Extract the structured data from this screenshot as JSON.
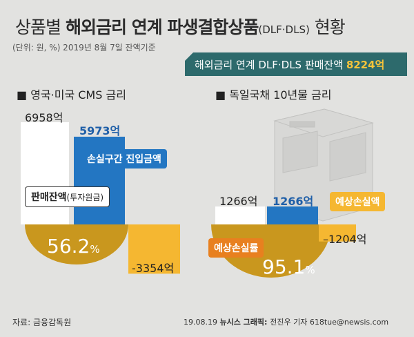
{
  "title": {
    "pre": "상품별 ",
    "bold": "해외금리 연계 파생결합상품",
    "paren": "(DLF·DLS)",
    "post": " 현황"
  },
  "unit_note": "(단위: 원, %)  2019년 8월 7일 잔액기준",
  "banner": {
    "label": "해외금리 연계 DLF·DLS 판매잔액 ",
    "value": "8224억"
  },
  "footer": {
    "source": "자료: 금융감독원",
    "credit_date": "19.08.19 ",
    "credit_bold": "뉴시스 그래픽: ",
    "credit_rest": "전진우 기자 618tue@newsis.com"
  },
  "colors": {
    "white_bar": "#ffffff",
    "blue_bar": "#2376c2",
    "orange_bar": "#f5b731",
    "gold_circle": "#c9971e",
    "banner": "#2d6a6c"
  },
  "chart_data": [
    {
      "type": "bar",
      "title": "■ 영국·미국 CMS 금리",
      "categories": [
        "판매잔액(투자원금)",
        "손실구간 진입금액",
        "예상손실액"
      ],
      "values": [
        6958,
        5973,
        -3354
      ],
      "value_labels": [
        "6958억",
        "5973억",
        "-3354억"
      ],
      "callouts": {
        "sales_bold": "판매잔액",
        "sales_paren": "(투자원금)",
        "loss_zone": "손실구간 진입금액"
      },
      "expected_loss_rate": {
        "value": 56.2,
        "label": "56.2",
        "unit": "%"
      }
    },
    {
      "type": "bar",
      "title": "■ 독일국채 10년물 금리",
      "categories": [
        "판매잔액(투자원금)",
        "손실구간 진입금액",
        "예상손실액"
      ],
      "values": [
        1266,
        1266,
        -1204
      ],
      "value_labels": [
        "1266억",
        "1266억",
        "–1204억"
      ],
      "callouts": {
        "expected_loss_label": "예상손실액",
        "loss_rate_label": "예상손실률"
      },
      "expected_loss_rate": {
        "value": 95.1,
        "label": "95.1",
        "unit": "%"
      }
    }
  ]
}
